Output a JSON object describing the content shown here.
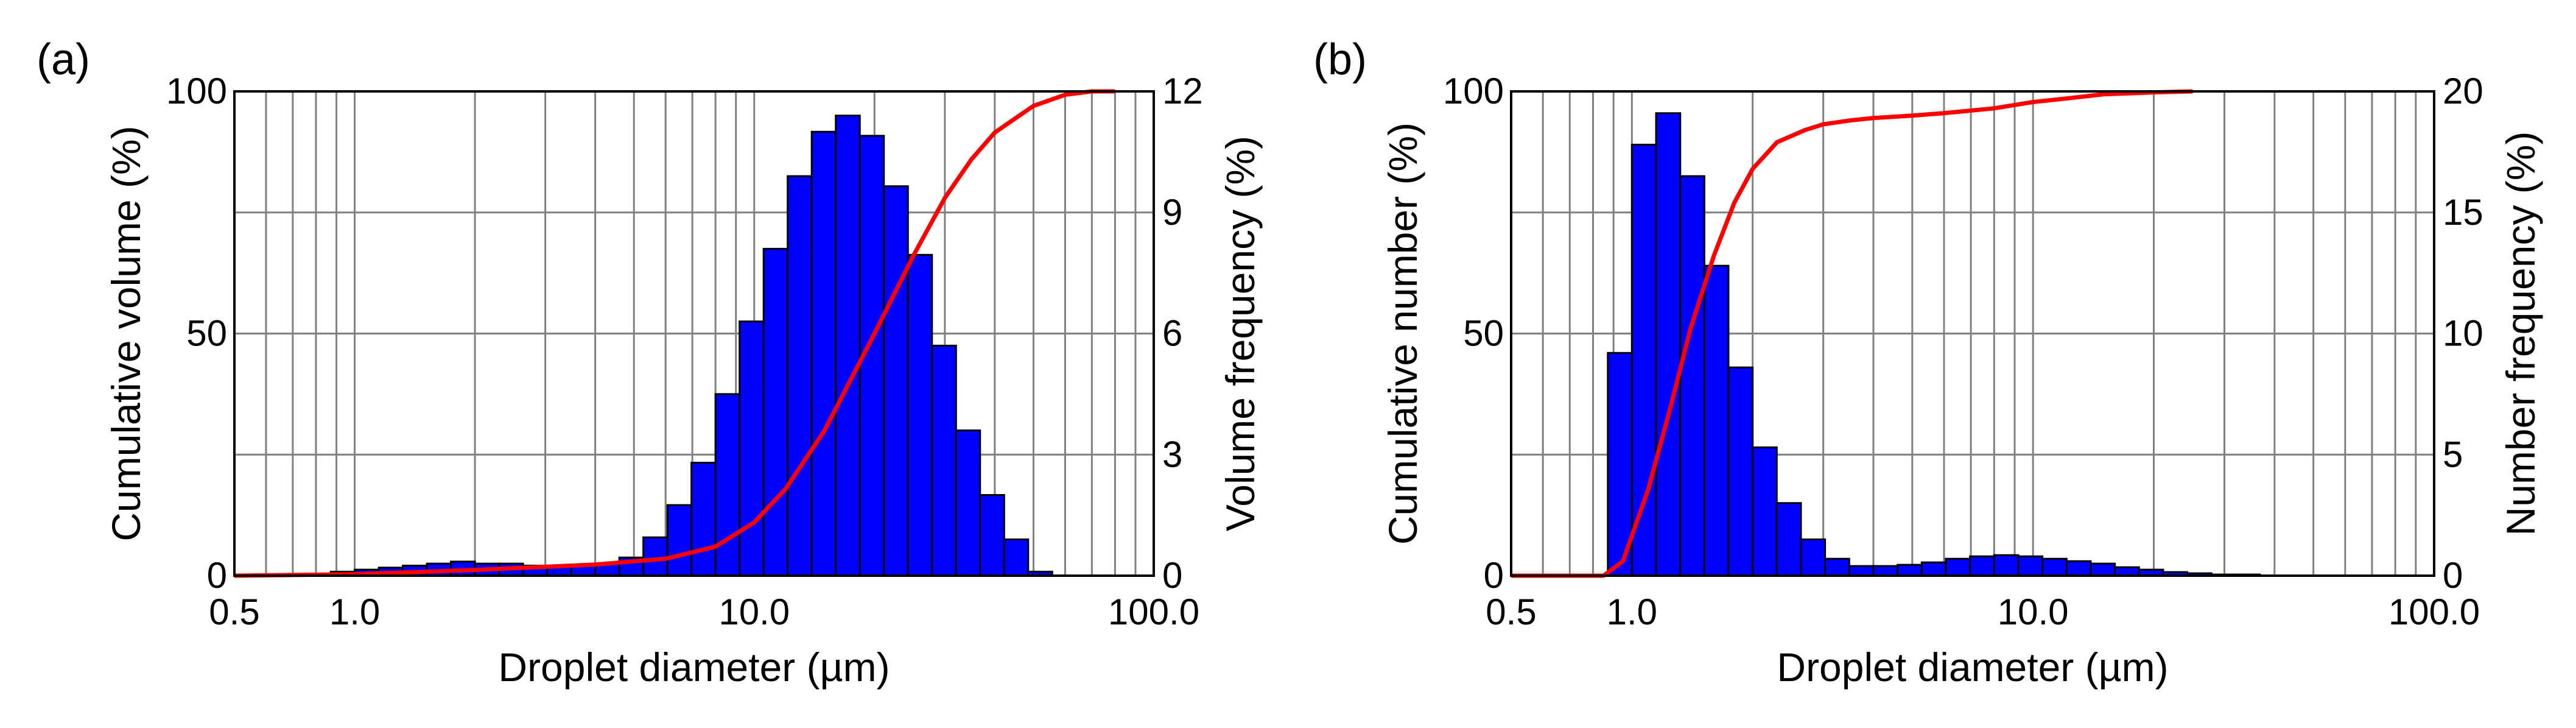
{
  "colors": {
    "bars": "#0000ff",
    "bar_edge": "#000000",
    "curve": "#ff0000",
    "grid": "#808080"
  },
  "chart_data": [
    {
      "panel_label": "(a)",
      "type": "bar",
      "x_scale": "log",
      "xlim": [
        0.5,
        100
      ],
      "xticks": [
        0.5,
        1.0,
        10.0,
        100.0
      ],
      "xtick_labels": [
        "0.5",
        "1.0",
        "10.0",
        "100.0"
      ],
      "xlabel": "Droplet diameter (µm)",
      "ylabel_left": "Cumulative volume (%)",
      "ylabel_right": "Volume frequency (%)",
      "ylim_left": [
        0,
        100
      ],
      "ylim_right": [
        0,
        12
      ],
      "yticks_left": [
        0,
        50,
        100
      ],
      "yticks_left_labels": [
        "0",
        "50",
        "100"
      ],
      "yticks_right": [
        0,
        3,
        6,
        9,
        12
      ],
      "yticks_right_labels": [
        "0",
        "3",
        "6",
        "9",
        "12"
      ],
      "grid": true,
      "bin_edges": [
        0.5,
        0.574,
        0.66,
        0.758,
        0.871,
        1.0,
        1.149,
        1.32,
        1.516,
        1.741,
        2.0,
        2.297,
        2.639,
        3.031,
        3.482,
        4.0,
        4.595,
        5.278,
        6.063,
        6.964,
        8.0,
        9.19,
        10.556,
        12.126,
        13.929,
        16.0,
        18.379,
        21.112,
        24.251,
        27.858,
        32.0,
        36.758,
        42.224,
        48.503,
        55.715,
        64.0,
        73.517,
        84.449
      ],
      "bars": [
        0.0,
        0.0,
        0.0,
        0.05,
        0.1,
        0.15,
        0.2,
        0.25,
        0.3,
        0.35,
        0.3,
        0.3,
        0.25,
        0.25,
        0.25,
        0.3,
        0.45,
        0.95,
        1.75,
        2.8,
        4.5,
        6.3,
        8.1,
        9.9,
        11.0,
        11.4,
        10.9,
        9.65,
        7.95,
        5.7,
        3.6,
        2.0,
        0.9,
        0.1,
        0.0,
        0.0,
        0.0
      ],
      "cumulative": {
        "x": [
          0.5,
          1.0,
          2.0,
          4.0,
          6.0,
          8.0,
          10.0,
          12.0,
          15.0,
          20.0,
          25.0,
          30.0,
          35.0,
          40.0,
          50.0,
          60.0,
          70.0,
          80.0
        ],
        "y": [
          0,
          0.3,
          1.2,
          2.3,
          3.5,
          6,
          11,
          18,
          30,
          50,
          66,
          78,
          86,
          91.5,
          97,
          99.3,
          100,
          100
        ]
      }
    },
    {
      "panel_label": "(b)",
      "type": "bar",
      "x_scale": "log",
      "xlim": [
        0.5,
        100
      ],
      "xticks": [
        0.5,
        1.0,
        10.0,
        100.0
      ],
      "xtick_labels": [
        "0.5",
        "1.0",
        "10.0",
        "100.0"
      ],
      "xlabel": "Droplet diameter (µm)",
      "ylabel_left": "Cumulative number (%)",
      "ylabel_right": "Number frequency (%)",
      "ylim_left": [
        0,
        100
      ],
      "ylim_right": [
        0,
        20
      ],
      "yticks_left": [
        0,
        50,
        100
      ],
      "yticks_left_labels": [
        "0",
        "50",
        "100"
      ],
      "yticks_right": [
        0,
        5,
        10,
        15,
        20
      ],
      "yticks_right_labels": [
        "0",
        "5",
        "10",
        "15",
        "20"
      ],
      "grid": true,
      "bin_edges": [
        0.871,
        1.0,
        1.149,
        1.32,
        1.516,
        1.741,
        2.0,
        2.297,
        2.639,
        3.031,
        3.482,
        4.0,
        4.595,
        5.278,
        6.063,
        6.964,
        8.0,
        9.19,
        10.556,
        12.126,
        13.929,
        16.0,
        18.379,
        21.112,
        24.251,
        27.858,
        32.0,
        36.758,
        42.224,
        48.503,
        55.715,
        64.0,
        73.517,
        84.449
      ],
      "bars": [
        9.2,
        17.8,
        19.1,
        16.5,
        12.8,
        8.6,
        5.3,
        3.0,
        1.5,
        0.7,
        0.4,
        0.4,
        0.45,
        0.55,
        0.7,
        0.8,
        0.85,
        0.8,
        0.7,
        0.6,
        0.5,
        0.35,
        0.25,
        0.15,
        0.1,
        0.05,
        0.05,
        0.0,
        0.0,
        0.0,
        0.0,
        0.0,
        0.0
      ],
      "cumulative": {
        "x": [
          0.5,
          0.85,
          0.95,
          1.1,
          1.25,
          1.4,
          1.6,
          1.8,
          2.0,
          2.3,
          2.7,
          3.0,
          3.5,
          4.0,
          5.0,
          6.0,
          8.0,
          10.0,
          12.0,
          15.0,
          20.0,
          25.0
        ],
        "y": [
          0,
          0,
          3,
          18,
          35,
          51,
          66,
          77,
          84,
          89.5,
          92,
          93.2,
          94,
          94.5,
          95,
          95.5,
          96.5,
          97.8,
          98.5,
          99.4,
          99.8,
          100
        ]
      }
    }
  ]
}
